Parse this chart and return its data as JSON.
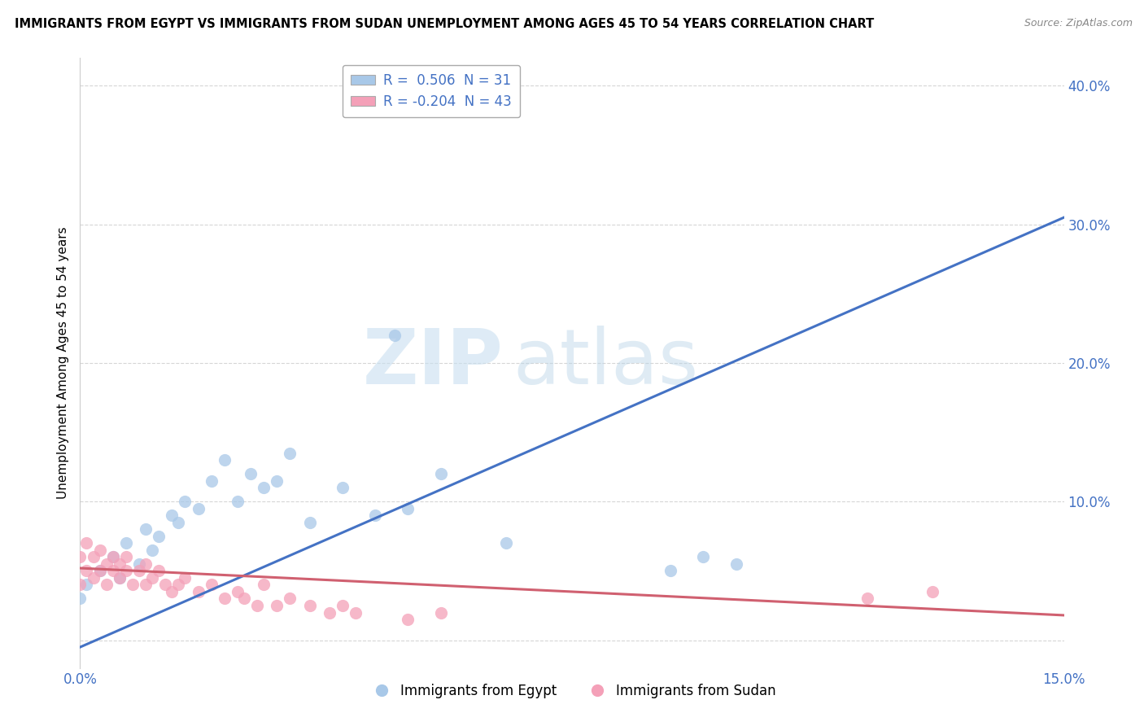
{
  "title": "IMMIGRANTS FROM EGYPT VS IMMIGRANTS FROM SUDAN UNEMPLOYMENT AMONG AGES 45 TO 54 YEARS CORRELATION CHART",
  "source": "Source: ZipAtlas.com",
  "ylabel": "Unemployment Among Ages 45 to 54 years",
  "xlim": [
    0.0,
    0.15
  ],
  "ylim": [
    -0.02,
    0.42
  ],
  "egypt_R": 0.506,
  "egypt_N": 31,
  "sudan_R": -0.204,
  "sudan_N": 43,
  "egypt_color": "#a8c8e8",
  "sudan_color": "#f4a0b8",
  "egypt_line_color": "#4472c4",
  "sudan_line_color": "#d06070",
  "egypt_scatter_x": [
    0.0,
    0.001,
    0.003,
    0.005,
    0.006,
    0.007,
    0.009,
    0.01,
    0.011,
    0.012,
    0.014,
    0.015,
    0.016,
    0.018,
    0.02,
    0.022,
    0.024,
    0.026,
    0.028,
    0.03,
    0.032,
    0.035,
    0.04,
    0.045,
    0.048,
    0.05,
    0.055,
    0.065,
    0.09,
    0.095,
    0.1
  ],
  "egypt_scatter_y": [
    0.03,
    0.04,
    0.05,
    0.06,
    0.045,
    0.07,
    0.055,
    0.08,
    0.065,
    0.075,
    0.09,
    0.085,
    0.1,
    0.095,
    0.115,
    0.13,
    0.1,
    0.12,
    0.11,
    0.115,
    0.135,
    0.085,
    0.11,
    0.09,
    0.22,
    0.095,
    0.12,
    0.07,
    0.05,
    0.06,
    0.055
  ],
  "sudan_scatter_x": [
    0.0,
    0.0,
    0.001,
    0.001,
    0.002,
    0.002,
    0.003,
    0.003,
    0.004,
    0.004,
    0.005,
    0.005,
    0.006,
    0.006,
    0.007,
    0.007,
    0.008,
    0.009,
    0.01,
    0.01,
    0.011,
    0.012,
    0.013,
    0.014,
    0.015,
    0.016,
    0.018,
    0.02,
    0.022,
    0.024,
    0.025,
    0.027,
    0.028,
    0.03,
    0.032,
    0.035,
    0.038,
    0.04,
    0.042,
    0.05,
    0.055,
    0.12,
    0.13
  ],
  "sudan_scatter_y": [
    0.04,
    0.06,
    0.05,
    0.07,
    0.045,
    0.06,
    0.05,
    0.065,
    0.04,
    0.055,
    0.05,
    0.06,
    0.045,
    0.055,
    0.05,
    0.06,
    0.04,
    0.05,
    0.055,
    0.04,
    0.045,
    0.05,
    0.04,
    0.035,
    0.04,
    0.045,
    0.035,
    0.04,
    0.03,
    0.035,
    0.03,
    0.025,
    0.04,
    0.025,
    0.03,
    0.025,
    0.02,
    0.025,
    0.02,
    0.015,
    0.02,
    0.03,
    0.035
  ],
  "egypt_line_x0": 0.0,
  "egypt_line_y0": -0.005,
  "egypt_line_x1": 0.15,
  "egypt_line_y1": 0.305,
  "sudan_line_x0": 0.0,
  "sudan_line_y0": 0.052,
  "sudan_line_x1": 0.15,
  "sudan_line_y1": 0.018,
  "watermark_zip": "ZIP",
  "watermark_atlas": "atlas",
  "legend_egypt_label": "Immigrants from Egypt",
  "legend_sudan_label": "Immigrants from Sudan",
  "background_color": "#ffffff",
  "grid_color": "#cccccc",
  "ytick_positions": [
    0.0,
    0.1,
    0.2,
    0.3,
    0.4
  ],
  "ytick_labels": [
    "",
    "10.0%",
    "20.0%",
    "30.0%",
    "40.0%"
  ],
  "xtick_positions": [
    0.0,
    0.15
  ],
  "xtick_labels": [
    "0.0%",
    "15.0%"
  ]
}
